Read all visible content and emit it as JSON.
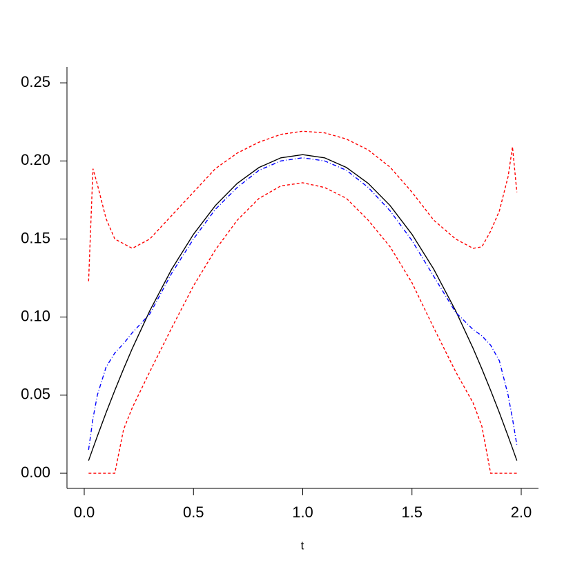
{
  "chart_data": {
    "type": "line",
    "xlabel": "t",
    "x": [
      0.02,
      0.04,
      0.06,
      0.1,
      0.14,
      0.18,
      0.22,
      0.3,
      0.4,
      0.5,
      0.6,
      0.7,
      0.8,
      0.9,
      1.0,
      1.1,
      1.2,
      1.3,
      1.4,
      1.5,
      1.6,
      1.7,
      1.78,
      1.82,
      1.86,
      1.9,
      1.94,
      1.96,
      1.98
    ],
    "series": [
      {
        "color": "#000000",
        "dash": "solid",
        "values": [
          0.0081,
          0.016,
          0.0237,
          0.0388,
          0.0531,
          0.0668,
          0.0799,
          0.104,
          0.1306,
          0.153,
          0.1714,
          0.1856,
          0.1958,
          0.202,
          0.204,
          0.202,
          0.1958,
          0.1856,
          0.1714,
          0.153,
          0.1306,
          0.104,
          0.0799,
          0.0668,
          0.0531,
          0.0388,
          0.0237,
          0.016,
          0.0081
        ]
      },
      {
        "color": "#0000ff",
        "dash": "dashdot",
        "values": [
          0.015,
          0.035,
          0.05,
          0.068,
          0.077,
          0.083,
          0.09,
          0.102,
          0.128,
          0.15,
          0.169,
          0.183,
          0.194,
          0.2,
          0.202,
          0.2,
          0.194,
          0.183,
          0.168,
          0.149,
          0.126,
          0.103,
          0.092,
          0.088,
          0.082,
          0.072,
          0.05,
          0.035,
          0.018
        ]
      },
      {
        "color": "#ff0000",
        "dash": "dashed",
        "values": [
          0.123,
          0.195,
          0.185,
          0.163,
          0.15,
          0.147,
          0.144,
          0.15,
          0.165,
          0.18,
          0.195,
          0.205,
          0.212,
          0.217,
          0.219,
          0.218,
          0.214,
          0.207,
          0.196,
          0.18,
          0.162,
          0.15,
          0.144,
          0.145,
          0.155,
          0.168,
          0.19,
          0.209,
          0.18
        ]
      },
      {
        "color": "#ff0000",
        "dash": "dashed",
        "values": [
          0,
          0,
          0,
          0,
          0,
          0.028,
          0.042,
          0.065,
          0.093,
          0.12,
          0.143,
          0.162,
          0.176,
          0.184,
          0.186,
          0.183,
          0.176,
          0.162,
          0.145,
          0.122,
          0.093,
          0.065,
          0.045,
          0.03,
          0,
          0,
          0,
          0,
          0
        ]
      }
    ],
    "xlim": [
      -0.079,
      2.079
    ],
    "xticks": [
      {
        "value": 0,
        "label": "0.0"
      },
      {
        "value": 0.5,
        "label": "0.5"
      },
      {
        "value": 1,
        "label": "1.0"
      },
      {
        "value": 1.5,
        "label": "1.5"
      },
      {
        "value": 2,
        "label": "2.0"
      }
    ],
    "ylim": [
      -0.0097,
      0.2602
    ],
    "yticks": [
      {
        "value": 0,
        "label": "0.00"
      },
      {
        "value": 0.05,
        "label": "0.05"
      },
      {
        "value": 0.1,
        "label": "0.10"
      },
      {
        "value": 0.15,
        "label": "0.15"
      },
      {
        "value": 0.2,
        "label": "0.20"
      },
      {
        "value": 0.25,
        "label": "0.25"
      }
    ],
    "grid": false
  }
}
